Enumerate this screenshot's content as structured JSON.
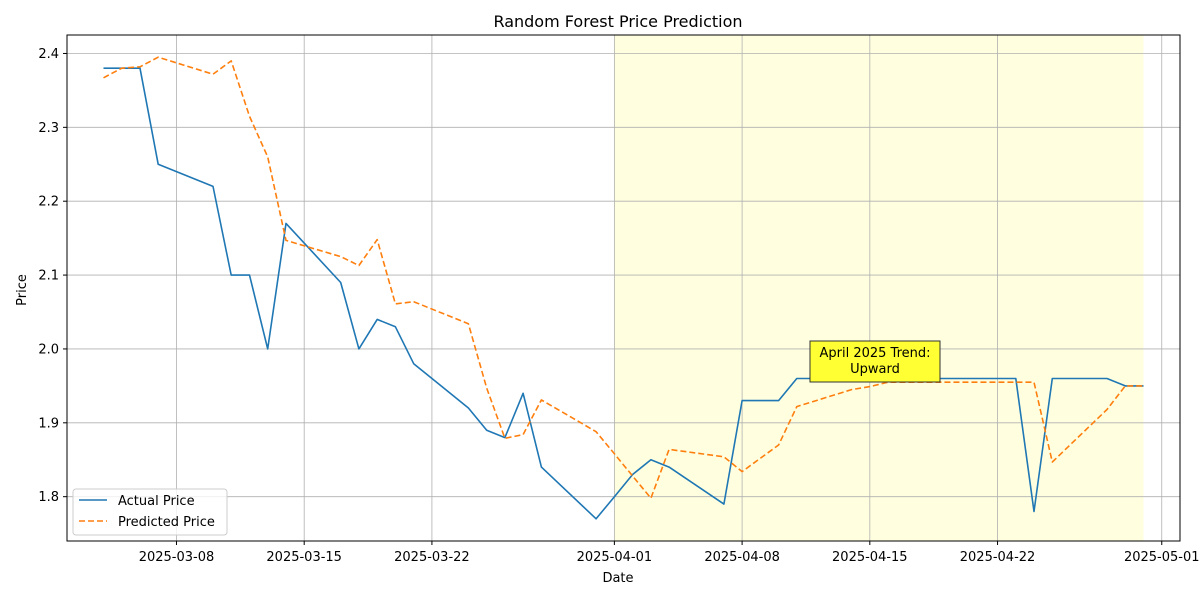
{
  "chart_data": {
    "type": "line",
    "title": "Random Forest Price Prediction",
    "xlabel": "Date",
    "ylabel": "Price",
    "xlim": [
      "2025-03-02",
      "2025-05-02"
    ],
    "ylim": [
      1.74,
      2.425
    ],
    "x_ticks": [
      "2025-03-08",
      "2025-03-15",
      "2025-03-22",
      "2025-04-01",
      "2025-04-08",
      "2025-04-15",
      "2025-04-22",
      "2025-05-01"
    ],
    "y_ticks": [
      1.8,
      1.9,
      2.0,
      2.1,
      2.2,
      2.3,
      2.4
    ],
    "y_tick_labels": [
      "1.8",
      "1.9",
      "2.0",
      "2.1",
      "2.2",
      "2.3",
      "2.4"
    ],
    "grid": true,
    "legend_position": "lower left",
    "highlight_range": [
      "2025-04-01",
      "2025-04-30"
    ],
    "highlight_color": "#ffffe0",
    "annotation": {
      "lines": [
        "April 2025 Trend:",
        "Upward"
      ],
      "x": "2025-04-16",
      "y": 1.975,
      "background": "#ffff33"
    },
    "x": [
      "2025-03-04",
      "2025-03-05",
      "2025-03-06",
      "2025-03-07",
      "2025-03-10",
      "2025-03-11",
      "2025-03-12",
      "2025-03-13",
      "2025-03-14",
      "2025-03-17",
      "2025-03-18",
      "2025-03-19",
      "2025-03-20",
      "2025-03-21",
      "2025-03-24",
      "2025-03-25",
      "2025-03-26",
      "2025-03-27",
      "2025-03-28",
      "2025-03-31",
      "2025-04-01",
      "2025-04-02",
      "2025-04-03",
      "2025-04-04",
      "2025-04-07",
      "2025-04-08",
      "2025-04-09",
      "2025-04-10",
      "2025-04-11",
      "2025-04-14",
      "2025-04-15",
      "2025-04-16",
      "2025-04-17",
      "2025-04-18",
      "2025-04-21",
      "2025-04-22",
      "2025-04-23",
      "2025-04-24",
      "2025-04-25",
      "2025-04-28",
      "2025-04-29",
      "2025-04-30"
    ],
    "series": [
      {
        "name": "Actual Price",
        "color": "#1f77b4",
        "style": "solid",
        "values": [
          2.38,
          2.38,
          2.38,
          2.25,
          2.22,
          2.1,
          2.1,
          2.0,
          2.17,
          2.09,
          2.0,
          2.04,
          2.03,
          1.98,
          1.92,
          1.89,
          1.88,
          1.94,
          1.84,
          1.77,
          1.8,
          1.83,
          1.85,
          1.84,
          1.79,
          1.93,
          1.93,
          1.93,
          1.96,
          1.96,
          1.96,
          1.96,
          1.96,
          1.96,
          1.96,
          1.96,
          1.96,
          1.78,
          1.96,
          1.96,
          1.95,
          1.95
        ]
      },
      {
        "name": "Predicted Price",
        "color": "#ff7f0e",
        "style": "dashed",
        "values": [
          2.367,
          2.38,
          2.382,
          2.395,
          2.372,
          2.39,
          2.315,
          2.26,
          2.147,
          2.125,
          2.113,
          2.148,
          2.061,
          2.064,
          2.034,
          1.947,
          1.879,
          1.884,
          1.931,
          1.888,
          1.858,
          1.828,
          1.798,
          1.864,
          1.854,
          1.834,
          1.852,
          1.87,
          1.922,
          1.945,
          1.949,
          1.955,
          1.955,
          1.955,
          1.955,
          1.955,
          1.955,
          1.955,
          1.847,
          1.918,
          1.95,
          1.95
        ]
      }
    ]
  }
}
